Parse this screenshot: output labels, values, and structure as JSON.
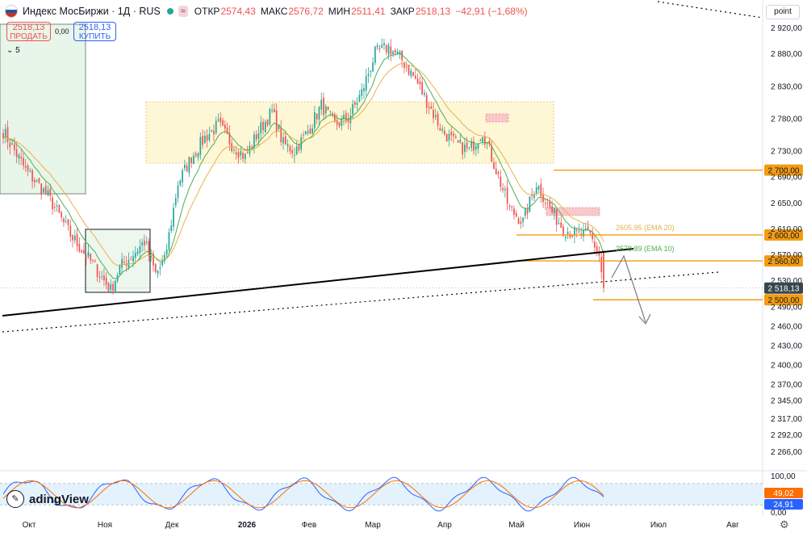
{
  "header": {
    "title": "Индекс МосБиржи · 1Д · RUS",
    "ohlc": [
      {
        "k": "ОТКР",
        "v": "2574,43"
      },
      {
        "k": "МАКС",
        "v": "2576,72"
      },
      {
        "k": "МИН",
        "v": "2511,41"
      },
      {
        "k": "ЗАКР",
        "v": "2518,13"
      },
      {
        "k": "",
        "v": "−42,91 (−1,68%)"
      }
    ]
  },
  "trade": {
    "sell_price": "2518,13",
    "sell_label": "ПРОДАТЬ",
    "spread": "0,00",
    "buy_price": "2518,13",
    "buy_label": "КУПИТЬ"
  },
  "indicator_toggle": "5",
  "axis_unit": "point",
  "logo_text": "adingView",
  "logo_icon": "pen-icon",
  "colors": {
    "up": "#26a69a",
    "down": "#ef5350",
    "ema10": "#4caf50",
    "ema20": "#e8b04c",
    "level": "#f39c12",
    "accent": "#2962ff"
  },
  "chart_data": {
    "type": "candlestick",
    "title": "Индекс МосБиржи · 1Д · RUS",
    "y_range": [
      2240,
      2930
    ],
    "y_ticks": [
      "2 920,00",
      "2 880,00",
      "2 830,00",
      "2 780,00",
      "2 730,00",
      "2 690,00",
      "2 650,00",
      "2 610,00",
      "2 570,00",
      "2 530,00",
      "2 490,00",
      "2 460,00",
      "2 430,00",
      "2 400,00",
      "2 370,00",
      "2 345,00",
      "2 317,00",
      "2 292,00",
      "2 266,00"
    ],
    "y_tick_values": [
      2920,
      2880,
      2830,
      2780,
      2730,
      2690,
      2650,
      2610,
      2570,
      2530,
      2490,
      2460,
      2430,
      2400,
      2370,
      2345,
      2317,
      2292,
      2266
    ],
    "x_labels": [
      "Окт",
      "Ноя",
      "Дек",
      "2026",
      "Фев",
      "Мар",
      "Апр",
      "Май",
      "Июн",
      "Июл",
      "Авг"
    ],
    "x_label_bold": "2026",
    "anchors": [
      [
        0,
        2760
      ],
      [
        10,
        2700
      ],
      [
        20,
        2660
      ],
      [
        30,
        2600
      ],
      [
        40,
        2555
      ],
      [
        45,
        2530
      ],
      [
        48,
        2515
      ],
      [
        52,
        2550
      ],
      [
        58,
        2570
      ],
      [
        63,
        2590
      ],
      [
        68,
        2540
      ],
      [
        72,
        2560
      ],
      [
        78,
        2680
      ],
      [
        84,
        2720
      ],
      [
        90,
        2750
      ],
      [
        96,
        2770
      ],
      [
        102,
        2740
      ],
      [
        108,
        2720
      ],
      [
        114,
        2760
      ],
      [
        120,
        2790
      ],
      [
        125,
        2740
      ],
      [
        130,
        2730
      ],
      [
        136,
        2760
      ],
      [
        142,
        2800
      ],
      [
        148,
        2770
      ],
      [
        154,
        2780
      ],
      [
        160,
        2820
      ],
      [
        166,
        2880
      ],
      [
        172,
        2890
      ],
      [
        178,
        2870
      ],
      [
        184,
        2840
      ],
      [
        190,
        2800
      ],
      [
        196,
        2760
      ],
      [
        202,
        2740
      ],
      [
        208,
        2730
      ],
      [
        214,
        2760
      ],
      [
        220,
        2700
      ],
      [
        226,
        2640
      ],
      [
        232,
        2620
      ],
      [
        238,
        2680
      ],
      [
        244,
        2640
      ],
      [
        250,
        2610
      ],
      [
        256,
        2600
      ],
      [
        262,
        2600
      ],
      [
        266,
        2568
      ],
      [
        268,
        2518
      ]
    ],
    "last": {
      "open": 2574.43,
      "high": 2576.72,
      "low": 2511.41,
      "close": 2518.13,
      "change": "−42,91 (−1,68%)"
    },
    "ema": [
      {
        "name": "EMA 20",
        "value": 2605.95,
        "label": "2605.95 (EMA 20)"
      },
      {
        "name": "EMA 10",
        "value": 2578.89,
        "label": "2578.89 (EMA 10)"
      }
    ],
    "levels": [
      {
        "value": 2700,
        "label": "2 700,00"
      },
      {
        "value": 2600,
        "label": "2 600,00"
      },
      {
        "value": 2560,
        "label": "2 560,00"
      },
      {
        "value": 2500,
        "label": "2 500,00"
      }
    ],
    "price_label": "2 518,13",
    "oscillator": {
      "type": "stochastic",
      "k_value": "49,02",
      "d_value": "24,91",
      "ticks": [
        "100,00",
        "0,00"
      ]
    }
  }
}
